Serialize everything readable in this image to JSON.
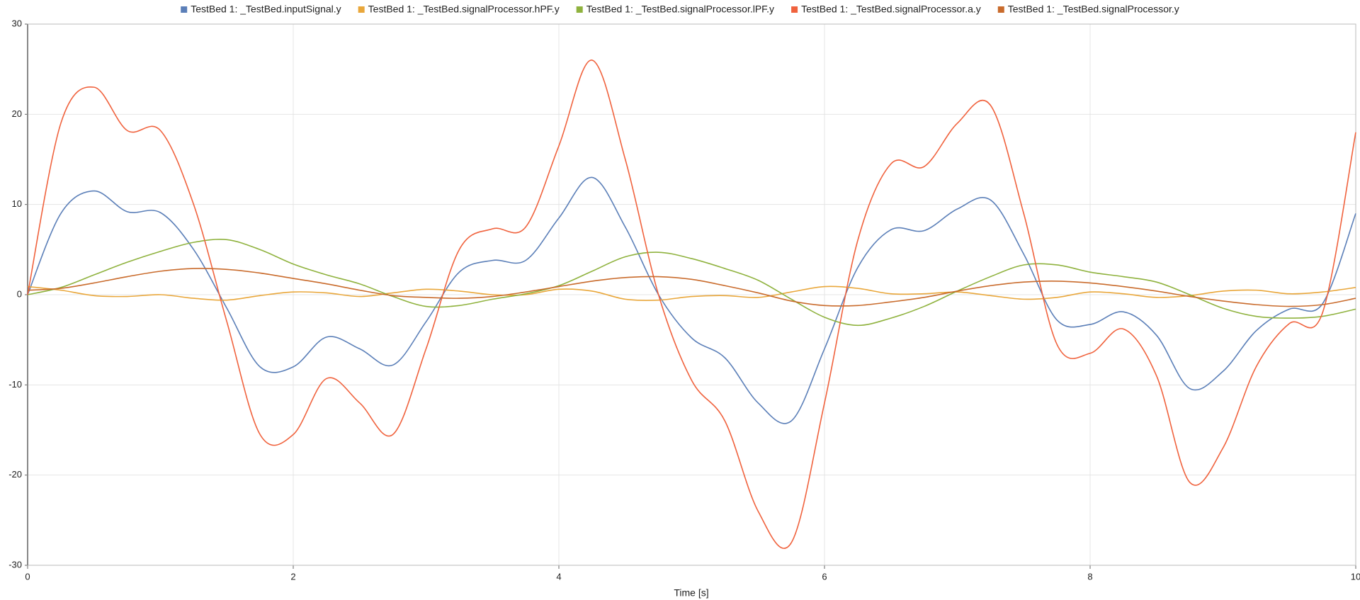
{
  "chart_data": {
    "type": "line",
    "xlabel": "Time [s]",
    "x": [
      0,
      0.25,
      0.5,
      0.75,
      1,
      1.25,
      1.5,
      1.75,
      2,
      2.25,
      2.5,
      2.75,
      3,
      3.25,
      3.5,
      3.75,
      4,
      4.25,
      4.5,
      4.75,
      5,
      5.25,
      5.5,
      5.75,
      6,
      6.25,
      6.5,
      6.75,
      7,
      7.25,
      7.5,
      7.75,
      8,
      8.25,
      8.5,
      8.75,
      9,
      9.25,
      9.5,
      9.75,
      10
    ],
    "series": [
      {
        "name": "TestBed 1: _TestBed.inputSignal.y",
        "color": "#5b7fb8",
        "values": [
          0,
          9,
          11.5,
          9.2,
          9.1,
          5,
          -1.5,
          -8,
          -8,
          -4.7,
          -6,
          -7.8,
          -3,
          2.5,
          3.8,
          3.8,
          8.5,
          13,
          7.5,
          0,
          -4.8,
          -7,
          -12,
          -14,
          -6,
          3,
          7.2,
          7.1,
          9.5,
          10.5,
          4.5,
          -2.8,
          -3.3,
          -1.9,
          -4.5,
          -10.4,
          -8.5,
          -4,
          -1.6,
          -1,
          9
        ]
      },
      {
        "name": "TestBed 1: _TestBed.signalProcessor.hPF.y",
        "color": "#e9a73b",
        "values": [
          0.9,
          0.5,
          -0.1,
          -0.2,
          0,
          -0.4,
          -0.6,
          -0.1,
          0.3,
          0.2,
          -0.2,
          0.2,
          0.6,
          0.4,
          0,
          0,
          0.6,
          0.4,
          -0.5,
          -0.6,
          -0.2,
          -0.1,
          -0.3,
          0.3,
          0.9,
          0.7,
          0.1,
          0.1,
          0.3,
          -0.1,
          -0.5,
          -0.3,
          0.3,
          0.1,
          -0.3,
          -0.1,
          0.4,
          0.5,
          0.1,
          0.3,
          0.8
        ]
      },
      {
        "name": "TestBed 1: _TestBed.signalProcessor.lPF.y",
        "color": "#8fb23e",
        "values": [
          0,
          0.8,
          2.2,
          3.6,
          4.8,
          5.8,
          6.1,
          5,
          3.4,
          2.2,
          1.2,
          -0.2,
          -1.3,
          -1.2,
          -0.5,
          0.1,
          1,
          2.6,
          4.2,
          4.7,
          4,
          2.9,
          1.6,
          -0.5,
          -2.5,
          -3.4,
          -2.6,
          -1.3,
          0.4,
          2,
          3.3,
          3.3,
          2.5,
          2,
          1.4,
          0,
          -1.5,
          -2.4,
          -2.6,
          -2.4,
          -1.6
        ]
      },
      {
        "name": "TestBed 1: _TestBed.signalProcessor.a.y",
        "color": "#f0623d",
        "values": [
          0,
          19,
          23,
          18.2,
          18.2,
          10,
          -3,
          -15.5,
          -15.5,
          -9.3,
          -12,
          -15.5,
          -6,
          5,
          7.3,
          7.5,
          16.5,
          26,
          15,
          0,
          -9.5,
          -14,
          -24,
          -27.5,
          -12,
          6,
          14.5,
          14.2,
          19,
          21,
          9,
          -5.5,
          -6.5,
          -3.8,
          -9,
          -20.8,
          -17,
          -8,
          -3.2,
          -2,
          18
        ]
      },
      {
        "name": "TestBed 1: _TestBed.signalProcessor.y",
        "color": "#c96b2c",
        "values": [
          0.5,
          0.7,
          1.3,
          2,
          2.6,
          2.9,
          2.8,
          2.4,
          1.8,
          1.2,
          0.5,
          -0.1,
          -0.3,
          -0.4,
          -0.2,
          0.3,
          0.9,
          1.5,
          1.9,
          2,
          1.7,
          1,
          0.2,
          -0.7,
          -1.2,
          -1.2,
          -0.8,
          -0.3,
          0.4,
          1,
          1.4,
          1.5,
          1.3,
          0.9,
          0.4,
          -0.2,
          -0.7,
          -1.1,
          -1.3,
          -1.1,
          -0.4
        ]
      }
    ],
    "xlim": [
      0,
      10
    ],
    "xticks": [
      0,
      2,
      4,
      6,
      8,
      10
    ],
    "ylim": [
      -30,
      30
    ],
    "yticks": [
      -30,
      -20,
      -10,
      0,
      10,
      20,
      30
    ],
    "grid": true
  }
}
